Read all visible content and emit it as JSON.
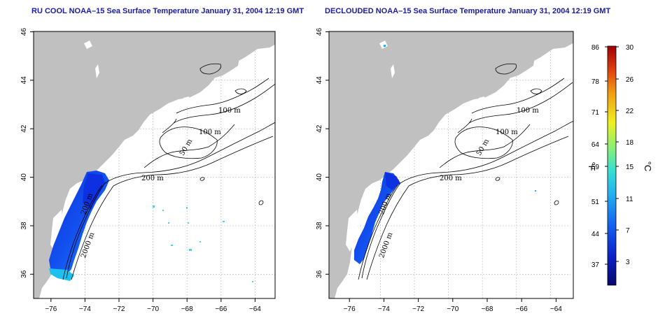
{
  "panels": [
    {
      "title": "RU COOL NOAA–15 Sea Surface Temperature January 31, 2004 12:19 GMT",
      "contour_labels": [
        "100 m",
        "100 m",
        "50 m",
        "200 m",
        "200 m",
        "2000 m"
      ]
    },
    {
      "title": "DECLOUDED NOAA–15 Sea Surface Temperature January 31, 2004 12:19 GMT",
      "contour_labels": [
        "100 m",
        "100 m",
        "50 m",
        "200 m",
        "200 m",
        "2000 m"
      ]
    }
  ],
  "axes": {
    "lon_ticks": [
      "−76",
      "−74",
      "−72",
      "−70",
      "−68",
      "−66",
      "−64"
    ],
    "lat_ticks": [
      "36",
      "38",
      "40",
      "42",
      "44",
      "46"
    ],
    "lon_range": [
      -77.2,
      -63.0
    ],
    "lat_range": [
      35.0,
      46.0
    ]
  },
  "colorbar": {
    "fahrenheit_label": "°F",
    "celsius_label": "°C",
    "fahrenheit_ticks": [
      "86",
      "78",
      "71",
      "64",
      "59",
      "51",
      "44",
      "37"
    ],
    "celsius_ticks": [
      "30",
      "26",
      "22",
      "18",
      "15",
      "11",
      "7",
      "3"
    ],
    "colors": [
      "#08086b",
      "#0a1fc8",
      "#1560f0",
      "#22b0f0",
      "#35e0d0",
      "#8ef070",
      "#f0f020",
      "#f0a010",
      "#e04010",
      "#a00000"
    ]
  }
}
